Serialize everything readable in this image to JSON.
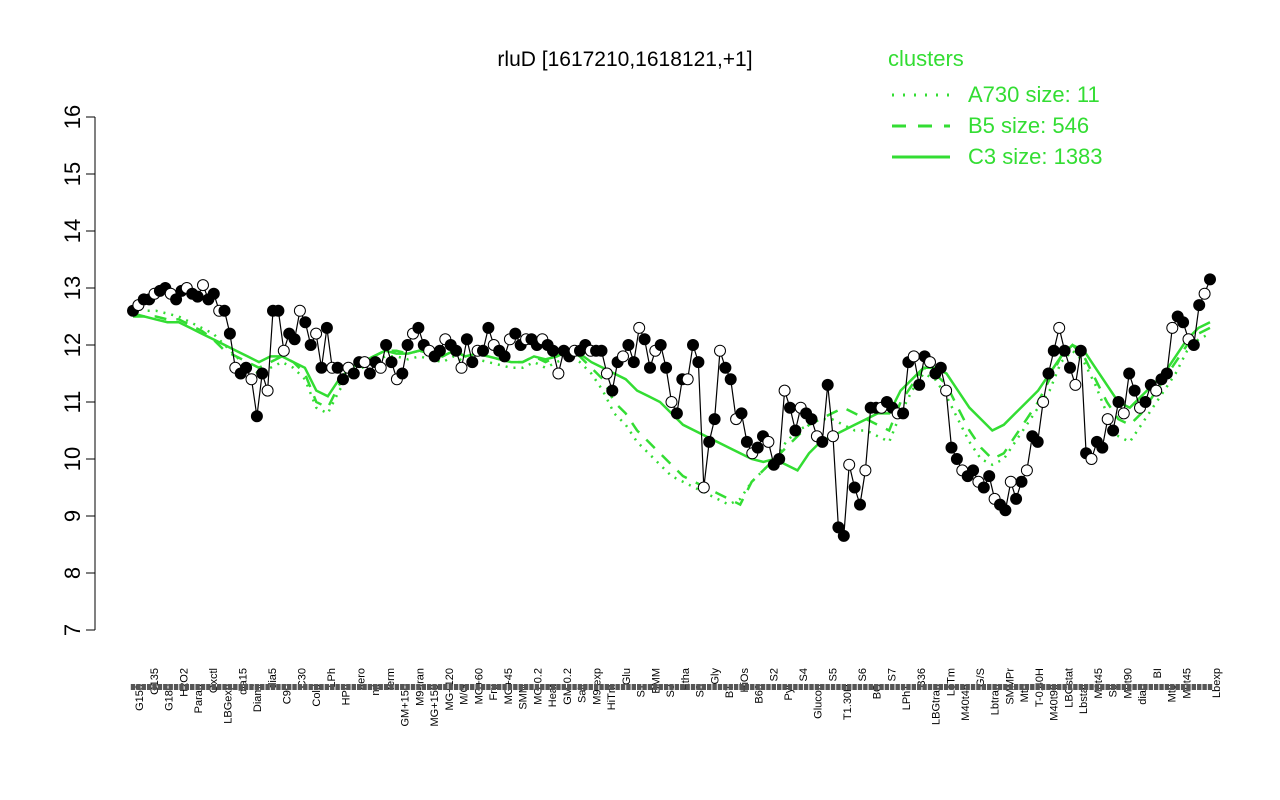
{
  "chart_data": {
    "type": "line",
    "title": "rluD [1617210,1618121,+1]",
    "xlabel": "",
    "ylabel": "",
    "ylim": [
      7,
      16
    ],
    "yticks": [
      7,
      8,
      9,
      10,
      11,
      12,
      13,
      14,
      15,
      16
    ],
    "legend": {
      "title": "clusters",
      "position": "top-right",
      "entries": [
        {
          "label": "A730 size: 11",
          "style": "dotted"
        },
        {
          "label": "B5 size: 546",
          "style": "dashed"
        },
        {
          "label": "C3 size: 1383",
          "style": "solid"
        }
      ]
    },
    "x_tick_labels_upper": [
      "G135",
      "H2O2",
      "Oxctl",
      "dia15",
      "dia5",
      "C30",
      "LPh",
      "aero",
      "ferm",
      "M9-tran",
      "MG+120",
      "MG+60",
      "MG+45",
      "MG-0.2",
      "GM-0.2",
      "M9-exp",
      "Glu",
      "BMM",
      "Etha",
      "Gly",
      "HiOs",
      "S2",
      "S4",
      "S5",
      "S6",
      "S7",
      "B36",
      "LoTm",
      "G/S",
      "SMMPr",
      "T-0.40H",
      "LBGstat",
      "M0t45",
      "M0t90",
      "BI",
      "M0t45",
      "Lbexp"
    ],
    "x_tick_labels_lower": [
      "G150",
      "G180",
      "Paraq",
      "LBGexp",
      "Diami",
      "C90",
      "Cold",
      "HPh",
      "nit",
      "GM+150",
      "MG+150",
      "M/G",
      "Fru",
      "SMM",
      "Heat",
      "Salt",
      "HiTm",
      "S1",
      "S3",
      "S8",
      "BT",
      "B60",
      "Pyr",
      "Glucon",
      "T1.30H",
      "BC",
      "LPhT",
      "LBGtran",
      "M40t45",
      "Lbtran",
      "Mt0",
      "M40t90",
      "Lbstat",
      "S0",
      "dia0",
      "Mt0"
    ],
    "data_series_color": "#000000",
    "cluster_line_color": "#33dd33",
    "points": [
      12.6,
      12.7,
      12.8,
      12.8,
      12.9,
      12.95,
      13.0,
      12.9,
      12.8,
      12.95,
      13.0,
      12.9,
      12.85,
      13.05,
      12.8,
      12.9,
      12.6,
      12.6,
      12.2,
      11.6,
      11.5,
      11.6,
      11.4,
      10.75,
      11.5,
      11.2,
      12.6,
      12.6,
      11.9,
      12.2,
      12.1,
      12.6,
      12.4,
      12.0,
      12.2,
      11.6,
      12.3,
      11.6,
      11.6,
      11.4,
      11.6,
      11.5,
      11.7,
      11.7,
      11.5,
      11.7,
      11.6,
      12.0,
      11.7,
      11.4,
      11.5,
      12.0,
      12.2,
      12.3,
      12.0,
      11.9,
      11.8,
      11.9,
      12.1,
      12.0,
      11.9,
      11.6,
      12.1,
      11.7,
      11.9,
      11.9,
      12.3,
      12.0,
      11.9,
      11.8,
      12.1,
      12.2,
      12.0,
      12.1,
      12.1,
      12.0,
      12.1,
      12.0,
      11.9,
      11.5,
      11.9,
      11.8,
      11.9,
      11.9,
      12.0,
      11.9,
      11.9,
      11.9,
      11.5,
      11.2,
      11.7,
      11.8,
      12.0,
      11.7,
      12.3,
      12.1,
      11.6,
      11.9,
      12.0,
      11.6,
      11.0,
      10.8,
      11.4,
      11.4,
      12.0,
      11.7,
      9.5,
      10.3,
      10.7,
      11.9,
      11.6,
      11.4,
      10.7,
      10.8,
      10.3,
      10.1,
      10.2,
      10.4,
      10.3,
      9.9,
      10.0,
      11.2,
      10.9,
      10.5,
      10.9,
      10.8,
      10.7,
      10.4,
      10.3,
      11.3,
      10.4,
      8.8,
      8.65,
      9.9,
      9.5,
      9.2,
      9.8,
      10.9,
      10.9,
      10.9,
      11.0,
      10.9,
      10.8,
      10.8,
      11.7,
      11.8,
      11.3,
      11.8,
      11.7,
      11.5,
      11.6,
      11.2,
      10.2,
      10.0,
      9.8,
      9.7,
      9.8,
      9.6,
      9.5,
      9.7,
      9.3,
      9.2,
      9.1,
      9.6,
      9.3,
      9.6,
      9.8,
      10.4,
      10.3,
      11.0,
      11.5,
      11.9,
      12.3,
      11.9,
      11.6,
      11.3,
      11.9,
      10.1,
      10.0,
      10.3,
      10.2,
      10.7,
      10.5,
      11.0,
      10.8,
      11.5,
      11.2,
      10.9,
      11.0,
      11.3,
      11.2,
      11.4,
      11.5,
      12.3,
      12.5,
      12.4,
      12.1,
      12.0,
      12.7,
      12.9,
      13.15
    ],
    "cluster_C3": [
      12.5,
      12.5,
      12.45,
      12.4,
      12.4,
      12.3,
      12.2,
      12.1,
      12.0,
      11.9,
      11.8,
      11.7,
      11.8,
      11.8,
      11.7,
      11.6,
      11.2,
      11.1,
      11.4,
      11.6,
      11.7,
      11.8,
      11.9,
      11.85,
      11.85,
      11.9,
      11.85,
      11.8,
      11.9,
      11.8,
      11.85,
      11.8,
      11.75,
      11.7,
      11.7,
      11.8,
      11.75,
      11.8,
      11.9,
      11.85,
      11.7,
      11.6,
      11.5,
      11.4,
      11.2,
      11.1,
      11.0,
      10.8,
      10.6,
      10.5,
      10.4,
      10.3,
      10.2,
      10.1,
      10.0,
      9.95,
      10.0,
      9.9,
      9.8,
      10.1,
      10.3,
      10.4,
      10.5,
      10.6,
      10.7,
      10.8,
      10.8,
      11.2,
      11.4,
      11.6,
      11.6,
      11.5,
      11.2,
      10.9,
      10.7,
      10.5,
      10.6,
      10.8,
      11.0,
      11.2,
      11.5,
      11.8,
      12.0,
      11.9,
      11.6,
      11.3,
      11.0,
      10.9,
      11.1,
      11.3,
      11.5,
      11.8,
      12.1,
      12.3,
      12.4
    ],
    "cluster_B5": [
      12.55,
      12.5,
      12.5,
      12.45,
      12.45,
      12.35,
      12.25,
      12.1,
      11.9,
      11.8,
      11.7,
      11.6,
      11.7,
      11.8,
      11.7,
      11.5,
      11.0,
      10.9,
      11.3,
      11.6,
      11.7,
      11.8,
      11.9,
      11.9,
      11.85,
      11.9,
      11.85,
      11.8,
      11.9,
      11.8,
      11.85,
      11.8,
      11.75,
      11.7,
      11.7,
      11.8,
      11.7,
      11.8,
      11.9,
      11.8,
      11.6,
      11.4,
      11.0,
      10.8,
      10.5,
      10.3,
      10.1,
      9.9,
      9.7,
      9.6,
      9.5,
      9.4,
      9.3,
      9.2,
      9.6,
      9.8,
      10.0,
      10.2,
      10.4,
      10.6,
      10.7,
      10.8,
      10.9,
      10.8,
      10.7,
      10.6,
      10.5,
      11.0,
      11.3,
      11.6,
      11.5,
      11.3,
      10.9,
      10.5,
      10.2,
      10.0,
      10.1,
      10.4,
      10.7,
      11.0,
      11.4,
      11.8,
      12.0,
      11.8,
      11.4,
      11.0,
      10.7,
      10.6,
      10.8,
      11.1,
      11.4,
      11.7,
      12.0,
      12.2,
      12.3
    ],
    "cluster_A730": [
      12.7,
      12.6,
      12.6,
      12.55,
      12.5,
      12.4,
      12.3,
      12.2,
      12.0,
      11.8,
      11.6,
      11.5,
      11.6,
      11.7,
      11.6,
      11.4,
      10.9,
      10.8,
      11.2,
      11.5,
      11.6,
      11.7,
      11.8,
      11.8,
      11.75,
      11.8,
      11.75,
      11.7,
      11.8,
      11.7,
      11.75,
      11.7,
      11.65,
      11.6,
      11.6,
      11.7,
      11.6,
      11.7,
      11.8,
      11.7,
      11.5,
      11.2,
      10.8,
      10.6,
      10.3,
      10.1,
      9.9,
      9.7,
      9.6,
      9.5,
      9.4,
      9.3,
      9.2,
      9.3,
      9.6,
      9.8,
      10.0,
      10.3,
      10.5,
      10.6,
      10.7,
      10.7,
      10.6,
      10.5,
      10.5,
      10.4,
      10.3,
      10.8,
      11.2,
      11.5,
      11.4,
      11.1,
      10.7,
      10.3,
      10.0,
      9.9,
      10.0,
      10.3,
      10.6,
      10.9,
      11.2,
      11.7,
      11.9,
      11.7,
      11.3,
      10.8,
      10.4,
      10.3,
      10.6,
      10.9,
      11.2,
      11.5,
      11.9,
      12.1,
      12.2
    ]
  }
}
